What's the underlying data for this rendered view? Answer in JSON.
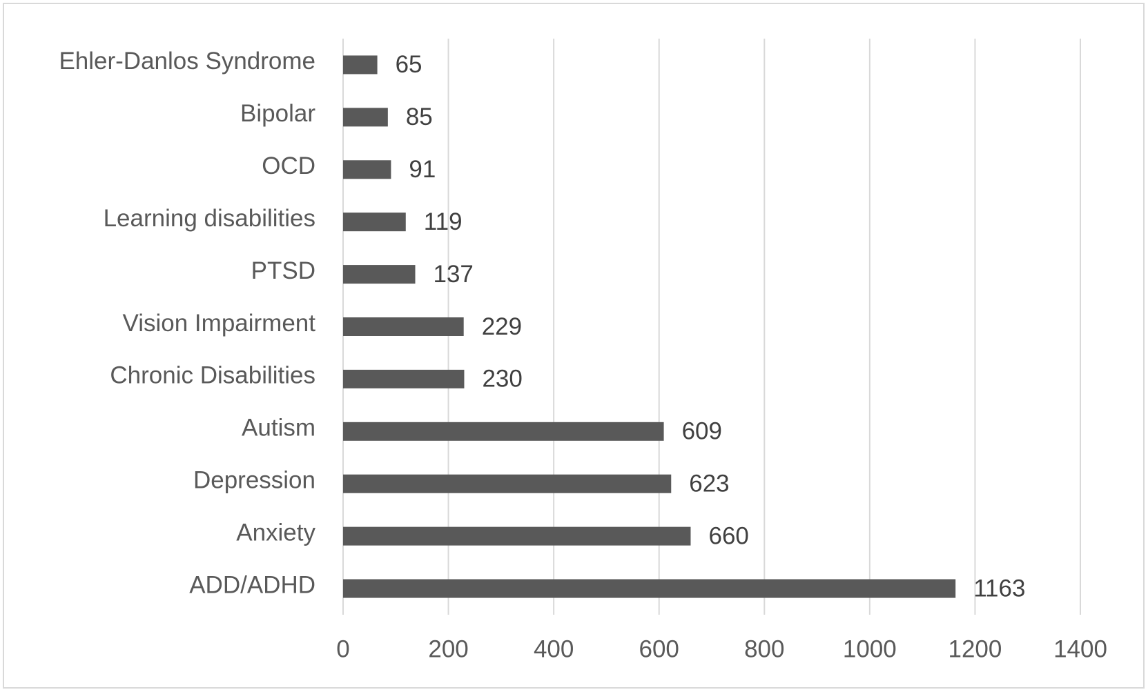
{
  "chart_data": {
    "type": "hbar",
    "categories": [
      "Ehler-Danlos Syndrome",
      "Bipolar",
      "OCD",
      "Learning disabilities",
      "PTSD",
      "Vision Impairment",
      "Chronic Disabilities",
      "Autism",
      "Depression",
      "Anxiety",
      "ADD/ADHD"
    ],
    "values": [
      65,
      85,
      91,
      119,
      137,
      229,
      230,
      609,
      623,
      660,
      1163
    ],
    "color": "#595959",
    "xlim": [
      0,
      1400
    ],
    "xticks": [
      0,
      200,
      400,
      600,
      800,
      1000,
      1200,
      1400
    ],
    "grid": true
  }
}
